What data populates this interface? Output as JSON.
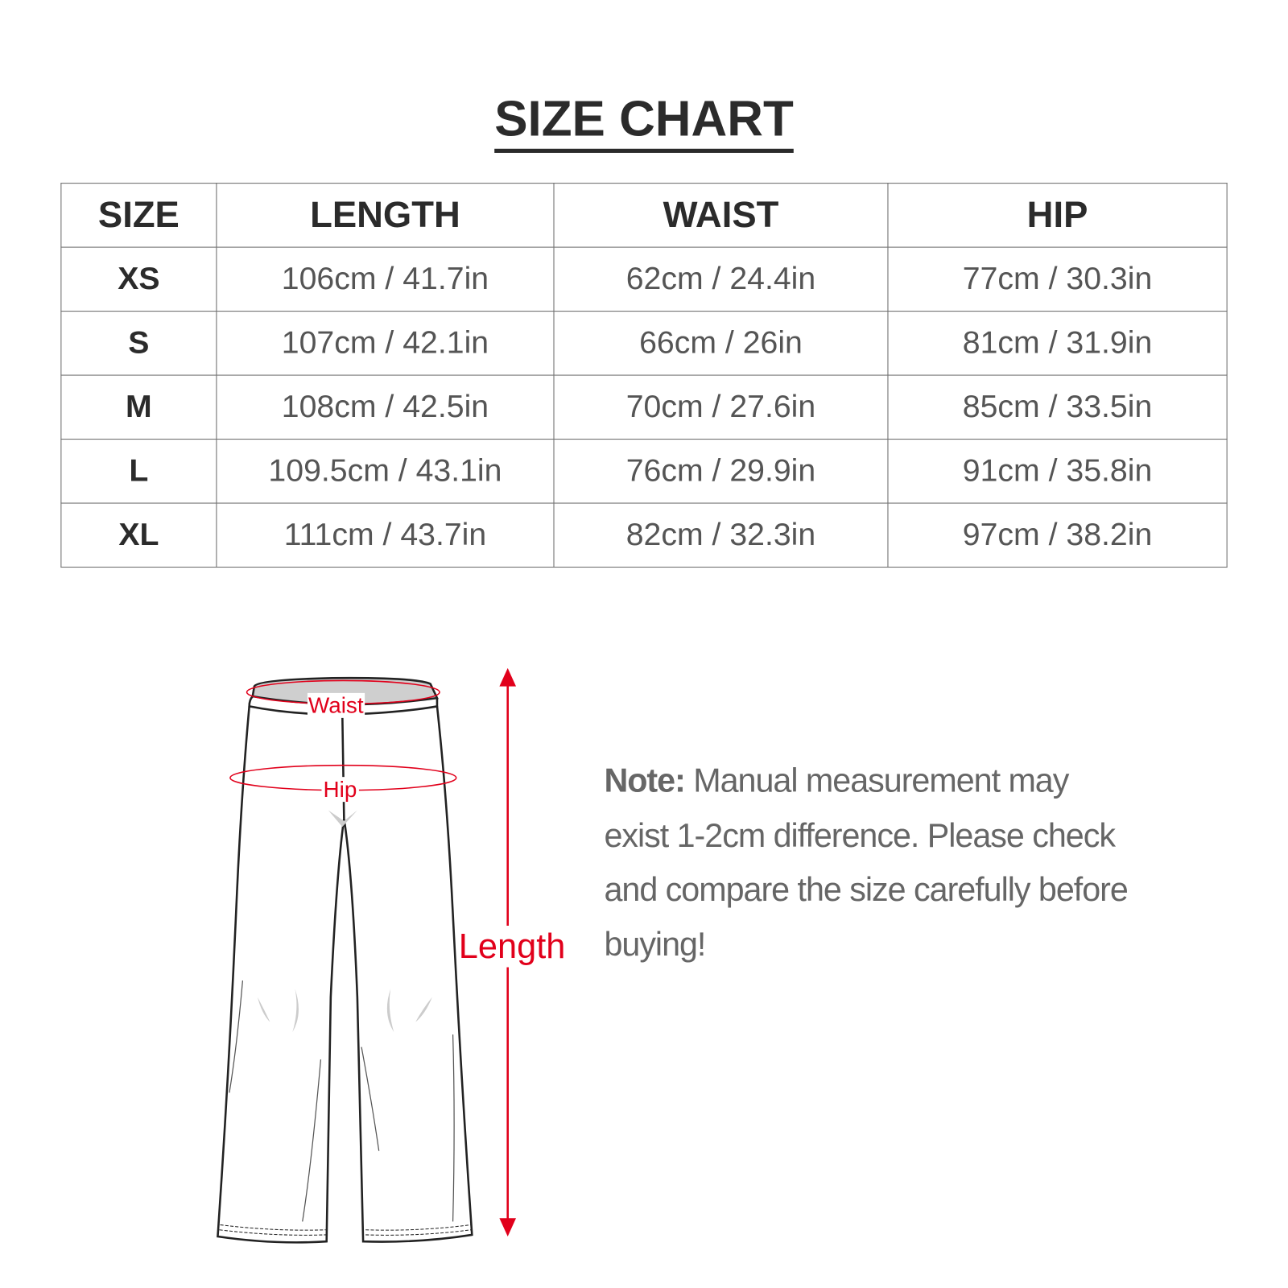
{
  "title": "SIZE CHART",
  "table": {
    "headers": [
      "SIZE",
      "LENGTH",
      "WAIST",
      "HIP"
    ],
    "rows": [
      [
        "XS",
        "106cm / 41.7in",
        "62cm / 24.4in",
        "77cm / 30.3in"
      ],
      [
        "S",
        "107cm / 42.1in",
        "66cm / 26in",
        "81cm / 31.9in"
      ],
      [
        "M",
        "108cm / 42.5in",
        "70cm / 27.6in",
        "85cm / 33.5in"
      ],
      [
        "L",
        "109.5cm / 43.1in",
        "76cm / 29.9in",
        "91cm / 35.8in"
      ],
      [
        "XL",
        "111cm / 43.7in",
        "82cm / 32.3in",
        "97cm / 38.2in"
      ]
    ]
  },
  "diagram": {
    "waist_label": "Waist",
    "hip_label": "Hip",
    "length_label": "Length",
    "accent_color": "#e1001b"
  },
  "note": {
    "prefix": "Note:",
    "text": " Manual measurement may exist 1-2cm difference. Please check and compare the size carefully before buying!"
  }
}
